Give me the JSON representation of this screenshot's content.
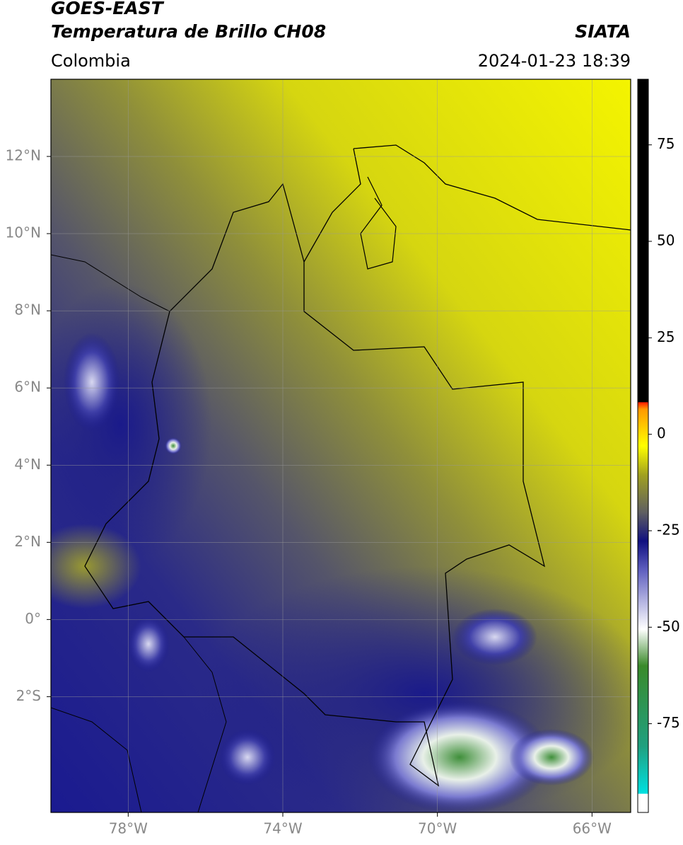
{
  "header": {
    "title": "GOES-EAST",
    "subtitle": "Temperatura de Brillo CH08",
    "source": "SIATA",
    "region": "Colombia",
    "datetime": "2024-01-23 18:39"
  },
  "map": {
    "xlim": [
      -80,
      -65
    ],
    "ylim": [
      -5,
      14
    ],
    "xticks": [
      {
        "value": -78,
        "label": "78°W"
      },
      {
        "value": -74,
        "label": "74°W"
      },
      {
        "value": -70,
        "label": "70°W"
      },
      {
        "value": -66,
        "label": "66°W"
      }
    ],
    "yticks": [
      {
        "value": 12,
        "label": "12°N"
      },
      {
        "value": 10,
        "label": "10°N"
      },
      {
        "value": 8,
        "label": "8°N"
      },
      {
        "value": 6,
        "label": "6°N"
      },
      {
        "value": 4,
        "label": "4°N"
      },
      {
        "value": 2,
        "label": "2°N"
      },
      {
        "value": 0,
        "label": "0°"
      },
      {
        "value": -2,
        "label": "2°S"
      }
    ],
    "grid": true
  },
  "colorbar": {
    "lim": [
      -98,
      92
    ],
    "ticks": [
      75,
      50,
      25,
      0,
      -25,
      -50,
      -75
    ]
  }
}
